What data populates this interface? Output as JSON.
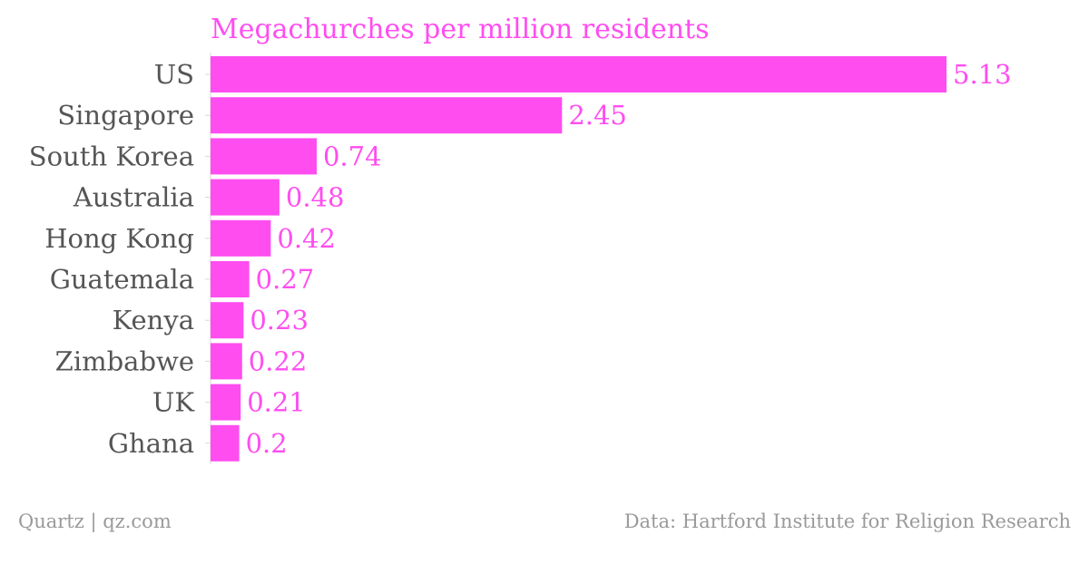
{
  "chart_data": {
    "type": "bar",
    "orientation": "horizontal",
    "title": "Megachurches per million residents",
    "categories": [
      "US",
      "Singapore",
      "South Korea",
      "Australia",
      "Hong Kong",
      "Guatemala",
      "Kenya",
      "Zimbabwe",
      "UK",
      "Ghana"
    ],
    "values": [
      5.13,
      2.45,
      0.74,
      0.48,
      0.42,
      0.27,
      0.23,
      0.22,
      0.21,
      0.2
    ],
    "value_labels": [
      "5.13",
      "2.45",
      "0.74",
      "0.48",
      "0.42",
      "0.27",
      "0.23",
      "0.22",
      "0.21",
      "0.2"
    ],
    "xlim": [
      0,
      5.13
    ],
    "grid": false,
    "bar_color": "#ff4df0",
    "title_color": "#ff4df0",
    "label_color": "#555555"
  },
  "footer": {
    "credit": "Quartz | qz.com",
    "source": "Data: Hartford Institute for Religion Research"
  }
}
